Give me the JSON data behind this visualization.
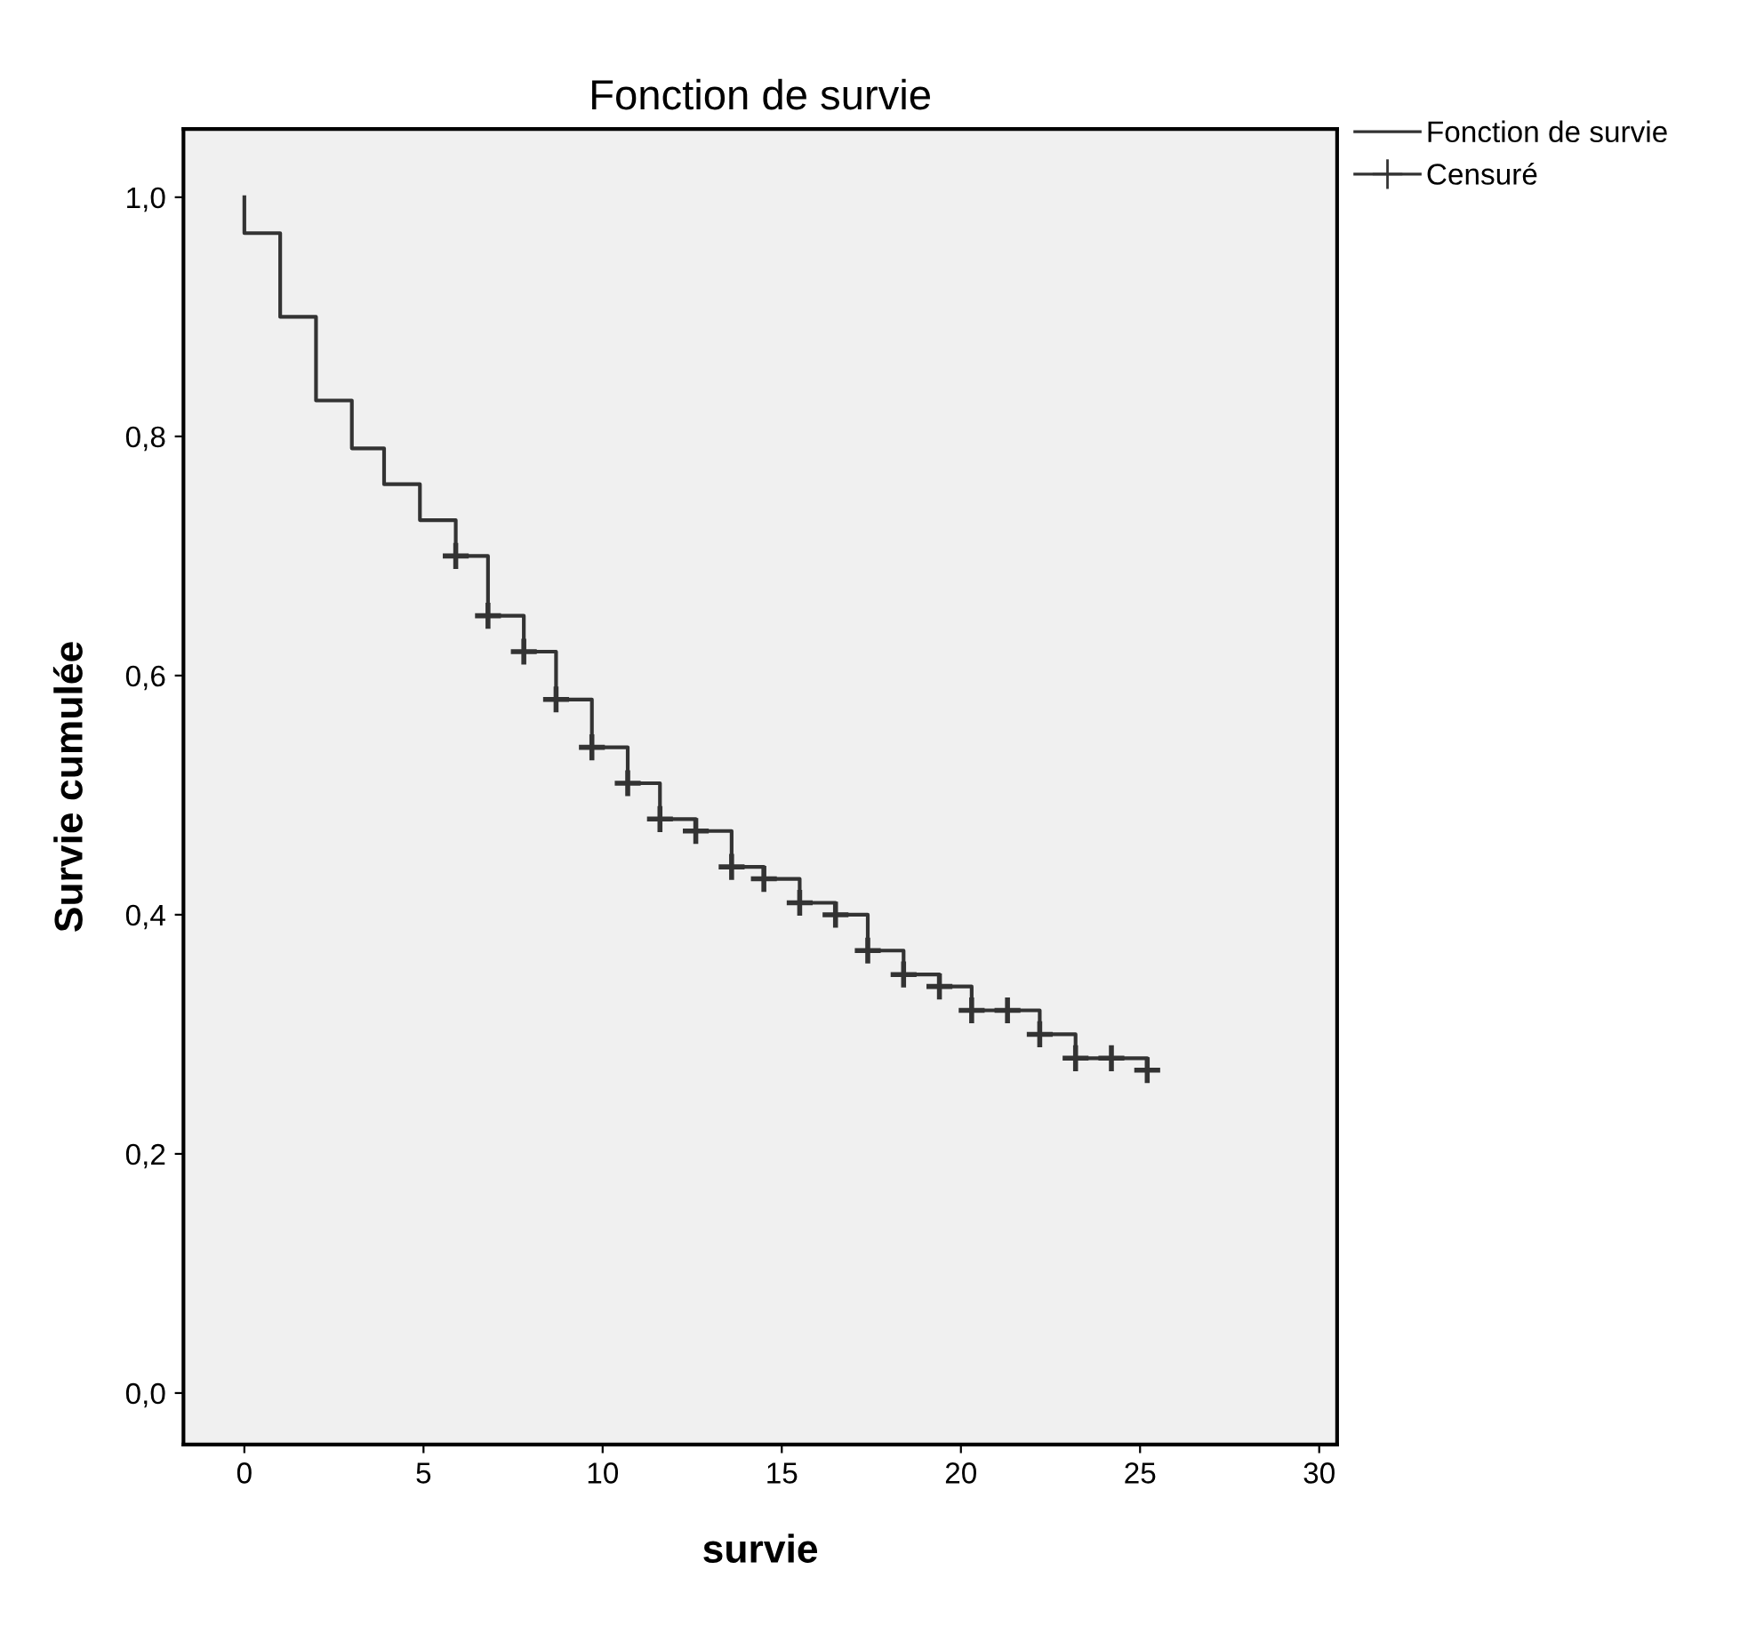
{
  "chart_data": {
    "type": "step",
    "title": "Fonction de survie",
    "xlabel": "survie",
    "ylabel": "Survie cumulée",
    "series": [
      {
        "name": "Fonction de survie",
        "color": "#333333",
        "x": [
          0,
          0,
          1.0,
          2.0,
          3.0,
          3.9,
          4.9,
          5.9,
          6.8,
          7.8,
          8.7,
          9.7,
          10.7,
          11.6,
          12.6,
          13.6,
          14.5,
          15.5,
          16.5,
          17.4,
          18.4,
          19.4,
          20.3,
          21.3,
          22.2,
          23.2,
          24.2,
          25.2
        ],
        "values": [
          1.0,
          0.97,
          0.9,
          0.83,
          0.79,
          0.76,
          0.73,
          0.7,
          0.65,
          0.62,
          0.58,
          0.54,
          0.51,
          0.48,
          0.47,
          0.44,
          0.43,
          0.41,
          0.4,
          0.37,
          0.35,
          0.34,
          0.32,
          0.32,
          0.3,
          0.28,
          0.28,
          0.27
        ]
      },
      {
        "name": "Censuré",
        "type": "scatter",
        "marker": "cross",
        "color": "#333333",
        "x": [
          5.9,
          6.8,
          7.8,
          8.7,
          9.7,
          10.7,
          11.6,
          12.6,
          13.6,
          14.5,
          15.5,
          16.5,
          17.4,
          18.4,
          19.4,
          20.3,
          21.3,
          22.2,
          23.2,
          24.2,
          25.2
        ],
        "values": [
          0.7,
          0.65,
          0.62,
          0.58,
          0.54,
          0.51,
          0.48,
          0.47,
          0.44,
          0.43,
          0.41,
          0.4,
          0.37,
          0.35,
          0.34,
          0.32,
          0.32,
          0.3,
          0.28,
          0.28,
          0.27
        ]
      }
    ],
    "xlim": [
      -1.7,
      30.5
    ],
    "xticks": [
      0,
      5,
      10,
      15,
      20,
      25,
      30
    ],
    "ylim": [
      -0.043,
      1.057
    ],
    "yticks": [
      {
        "value": 0.0,
        "label": "0,0"
      },
      {
        "value": 0.2,
        "label": "0,2"
      },
      {
        "value": 0.4,
        "label": "0,4"
      },
      {
        "value": 0.6,
        "label": "0,6"
      },
      {
        "value": 0.8,
        "label": "0,8"
      },
      {
        "value": 1.0,
        "label": "1,0"
      }
    ],
    "grid": false,
    "legend": "top right"
  }
}
